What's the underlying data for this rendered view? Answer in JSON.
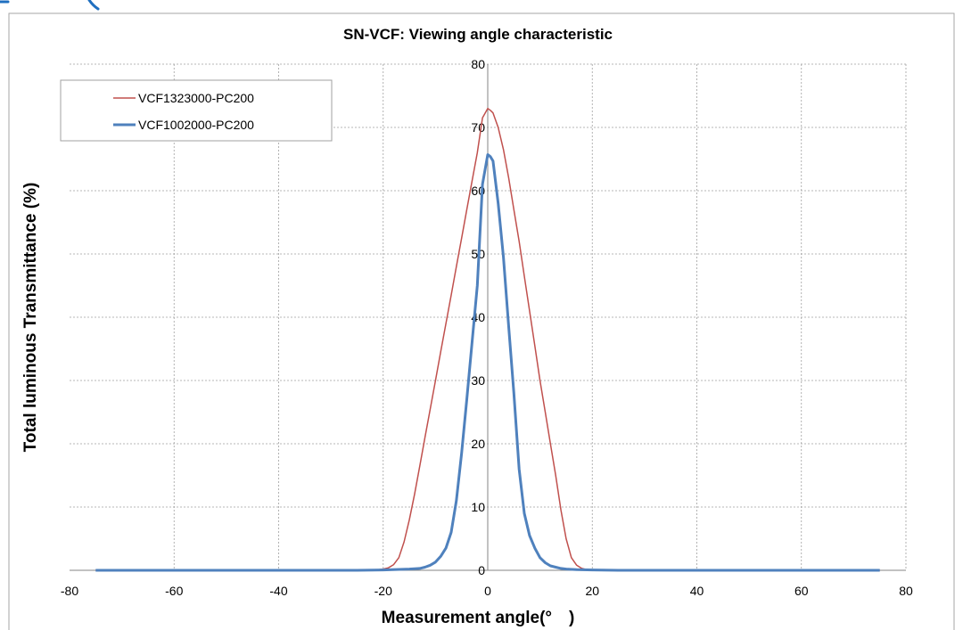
{
  "colors": {
    "corner_mark": "#1f6fc0"
  },
  "chart_data": {
    "type": "line",
    "title": "SN-VCF: Viewing angle characteristic",
    "xlabel": "Measurement angle(°　)",
    "ylabel": "Total luminous Transmittance (%)",
    "xlim": [
      -80,
      80
    ],
    "ylim": [
      0,
      80
    ],
    "xticks": [
      -80,
      -60,
      -40,
      -20,
      0,
      20,
      40,
      60,
      80
    ],
    "yticks": [
      0,
      10,
      20,
      30,
      40,
      50,
      60,
      70,
      80
    ],
    "grid": true,
    "legend_position": "top-left",
    "series": [
      {
        "name": "VCF1323000-PC200",
        "color": "#c0504d",
        "points": [
          [
            -75,
            0
          ],
          [
            -30,
            0
          ],
          [
            -22,
            0
          ],
          [
            -20,
            0.2
          ],
          [
            -19,
            0.4
          ],
          [
            -18,
            0.9
          ],
          [
            -17,
            2
          ],
          [
            -16,
            4.5
          ],
          [
            -15,
            8
          ],
          [
            -14,
            12
          ],
          [
            -13,
            16.5
          ],
          [
            -12,
            21
          ],
          [
            -11,
            25.5
          ],
          [
            -10,
            30
          ],
          [
            -9,
            34.5
          ],
          [
            -8,
            39
          ],
          [
            -7,
            43.5
          ],
          [
            -6,
            48
          ],
          [
            -5,
            52.5
          ],
          [
            -4,
            57
          ],
          [
            -3,
            61.5
          ],
          [
            -2,
            66
          ],
          [
            -1,
            71.5
          ],
          [
            0,
            73
          ],
          [
            0.5,
            72.7
          ],
          [
            1,
            72.3
          ],
          [
            2,
            70
          ],
          [
            3,
            66.5
          ],
          [
            4,
            62
          ],
          [
            5,
            57
          ],
          [
            6,
            52
          ],
          [
            7,
            46.5
          ],
          [
            8,
            41
          ],
          [
            9,
            35.5
          ],
          [
            10,
            30
          ],
          [
            11,
            25
          ],
          [
            12,
            20
          ],
          [
            13,
            15
          ],
          [
            14,
            9.5
          ],
          [
            15,
            5
          ],
          [
            16,
            2
          ],
          [
            17,
            0.8
          ],
          [
            18,
            0.3
          ],
          [
            19,
            0.1
          ],
          [
            20,
            0
          ],
          [
            30,
            0
          ],
          [
            75,
            0
          ]
        ]
      },
      {
        "name": "VCF1002000-PC200",
        "color": "#4f81bd",
        "points": [
          [
            -75,
            0
          ],
          [
            -25,
            0
          ],
          [
            -20,
            0.05
          ],
          [
            -15,
            0.2
          ],
          [
            -13,
            0.3
          ],
          [
            -12,
            0.5
          ],
          [
            -11,
            0.8
          ],
          [
            -10,
            1.3
          ],
          [
            -9,
            2.2
          ],
          [
            -8,
            3.5
          ],
          [
            -7,
            6
          ],
          [
            -6,
            11
          ],
          [
            -5,
            18.5
          ],
          [
            -4,
            27
          ],
          [
            -3,
            36
          ],
          [
            -2,
            45
          ],
          [
            -1,
            61
          ],
          [
            0,
            65.7
          ],
          [
            0.5,
            65.4
          ],
          [
            1,
            64.7
          ],
          [
            2,
            58
          ],
          [
            3,
            49.5
          ],
          [
            4,
            38.5
          ],
          [
            5,
            28
          ],
          [
            6,
            16
          ],
          [
            7,
            9
          ],
          [
            8,
            5.5
          ],
          [
            9,
            3.5
          ],
          [
            10,
            2
          ],
          [
            11,
            1.2
          ],
          [
            12,
            0.7
          ],
          [
            13,
            0.5
          ],
          [
            14,
            0.3
          ],
          [
            15,
            0.2
          ],
          [
            17,
            0.1
          ],
          [
            20,
            0.05
          ],
          [
            25,
            0
          ],
          [
            75,
            0
          ]
        ]
      }
    ]
  }
}
